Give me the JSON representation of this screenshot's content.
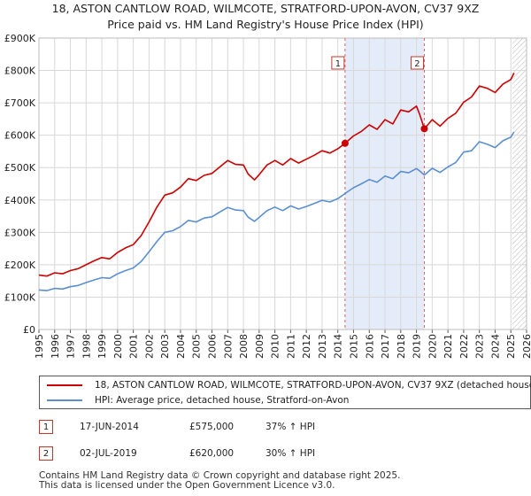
{
  "title_line1": "18, ASTON CANTLOW ROAD, WILMCOTE, STRATFORD-UPON-AVON, CV37 9XZ",
  "title_line2": "Price paid vs. HM Land Registry's House Price Index (HPI)",
  "chart_data": {
    "type": "line",
    "xlim": [
      1995,
      2026
    ],
    "ylim": [
      0,
      900000
    ],
    "y_ticks": [
      0,
      100000,
      200000,
      300000,
      400000,
      500000,
      600000,
      700000,
      800000,
      900000
    ],
    "y_tick_labels": [
      "£0",
      "£100K",
      "£200K",
      "£300K",
      "£400K",
      "£500K",
      "£600K",
      "£700K",
      "£800K",
      "£900K"
    ],
    "x_ticks": [
      1995,
      1996,
      1997,
      1998,
      1999,
      2000,
      2001,
      2002,
      2003,
      2004,
      2005,
      2006,
      2007,
      2008,
      2009,
      2010,
      2011,
      2012,
      2013,
      2014,
      2015,
      2016,
      2017,
      2018,
      2019,
      2020,
      2021,
      2022,
      2023,
      2024,
      2025,
      2026
    ],
    "grid": true,
    "shaded_span": [
      2014.46,
      2019.5
    ],
    "forecast_start": 2025.1,
    "series": [
      {
        "name": "18, ASTON CANTLOW ROAD, WILMCOTE, STRATFORD-UPON-AVON, CV37 9XZ (detached house)",
        "color": "#cc0000",
        "x": [
          1995,
          1995.5,
          1996,
          1996.5,
          1997,
          1997.5,
          1998,
          1998.5,
          1999,
          1999.5,
          2000,
          2000.5,
          2001,
          2001.5,
          2002,
          2002.5,
          2003,
          2003.5,
          2004,
          2004.5,
          2005,
          2005.5,
          2006,
          2006.5,
          2007,
          2007.5,
          2008,
          2008.3,
          2008.7,
          2009,
          2009.5,
          2010,
          2010.5,
          2011,
          2011.5,
          2012,
          2012.5,
          2013,
          2013.5,
          2014,
          2014.46,
          2015,
          2015.5,
          2016,
          2016.5,
          2017,
          2017.5,
          2018,
          2018.5,
          2019,
          2019.2,
          2019.5,
          2020,
          2020.5,
          2021,
          2021.5,
          2022,
          2022.5,
          2023,
          2023.5,
          2024,
          2024.5,
          2025,
          2025.2
        ],
        "values": [
          168000,
          165000,
          175000,
          172000,
          182000,
          188000,
          200000,
          212000,
          222000,
          218000,
          238000,
          252000,
          262000,
          290000,
          332000,
          378000,
          415000,
          422000,
          440000,
          466000,
          460000,
          476000,
          482000,
          502000,
          522000,
          510000,
          508000,
          480000,
          462000,
          478000,
          508000,
          522000,
          508000,
          528000,
          514000,
          526000,
          538000,
          552000,
          545000,
          558000,
          575000,
          598000,
          612000,
          632000,
          618000,
          648000,
          635000,
          678000,
          672000,
          690000,
          665000,
          620000,
          648000,
          628000,
          652000,
          668000,
          702000,
          718000,
          752000,
          745000,
          732000,
          758000,
          772000,
          792000
        ]
      },
      {
        "name": "HPI: Average price, detached house, Stratford-on-Avon",
        "color": "#5b8fd0",
        "x": [
          1995,
          1995.5,
          1996,
          1996.5,
          1997,
          1997.5,
          1998,
          1998.5,
          1999,
          1999.5,
          2000,
          2000.5,
          2001,
          2001.5,
          2002,
          2002.5,
          2003,
          2003.5,
          2004,
          2004.5,
          2005,
          2005.5,
          2006,
          2006.5,
          2007,
          2007.5,
          2008,
          2008.3,
          2008.7,
          2009,
          2009.5,
          2010,
          2010.5,
          2011,
          2011.5,
          2012,
          2012.5,
          2013,
          2013.5,
          2014,
          2014.46,
          2015,
          2015.5,
          2016,
          2016.5,
          2017,
          2017.5,
          2018,
          2018.5,
          2019,
          2019.2,
          2019.5,
          2020,
          2020.5,
          2021,
          2021.5,
          2022,
          2022.5,
          2023,
          2023.5,
          2024,
          2024.5,
          2025,
          2025.2
        ],
        "values": [
          122000,
          120000,
          127000,
          125000,
          132000,
          136000,
          145000,
          153000,
          160000,
          158000,
          172000,
          182000,
          190000,
          210000,
          240000,
          272000,
          300000,
          305000,
          318000,
          337000,
          332000,
          344000,
          348000,
          363000,
          377000,
          369000,
          367000,
          347000,
          334000,
          346000,
          367000,
          378000,
          367000,
          382000,
          372000,
          380000,
          389000,
          399000,
          394000,
          404000,
          420000,
          438000,
          450000,
          463000,
          455000,
          474000,
          466000,
          488000,
          484000,
          497000,
          490000,
          477000,
          498000,
          485000,
          502000,
          516000,
          548000,
          552000,
          580000,
          572000,
          562000,
          583000,
          594000,
          610000
        ]
      }
    ],
    "transactions": [
      {
        "marker": "1",
        "x": 2014.46,
        "y": 575000,
        "date": "17-JUN-2014",
        "price": "£575,000",
        "delta": "37% ↑ HPI"
      },
      {
        "marker": "2",
        "x": 2019.5,
        "y": 620000,
        "date": "02-JUL-2019",
        "price": "£620,000",
        "delta": "30% ↑ HPI"
      }
    ]
  },
  "footer_line1": "Contains HM Land Registry data © Crown copyright and database right 2025.",
  "footer_line2": "This data is licensed under the Open Government Licence v3.0."
}
